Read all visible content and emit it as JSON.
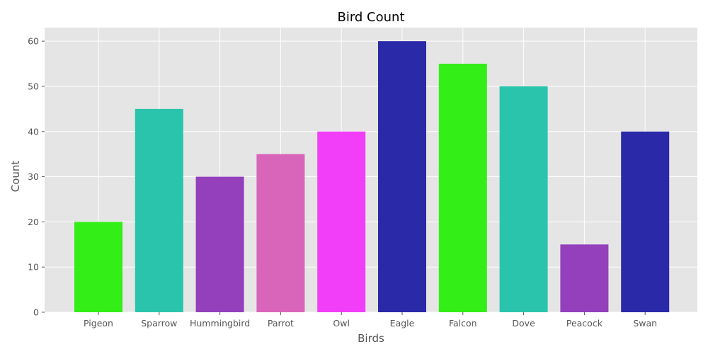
{
  "chart_data": {
    "type": "bar",
    "title": "Bird Count",
    "xlabel": "Birds",
    "ylabel": "Count",
    "categories": [
      "Pigeon",
      "Sparrow",
      "Hummingbird",
      "Parrot",
      "Owl",
      "Eagle",
      "Falcon",
      "Dove",
      "Peacock",
      "Swan"
    ],
    "values": [
      20,
      45,
      30,
      35,
      40,
      60,
      55,
      50,
      15,
      40
    ],
    "colors": [
      "#33ee17",
      "#2ac4ac",
      "#943fbc",
      "#d865ba",
      "#f23ef8",
      "#2a2aa8",
      "#33ee17",
      "#2ac4ac",
      "#943fbc",
      "#2a2aa8"
    ],
    "ylim": [
      0,
      63
    ],
    "yticks": [
      0,
      10,
      20,
      30,
      40,
      50,
      60
    ],
    "grid": true,
    "background_color": "#e5e5e5"
  }
}
